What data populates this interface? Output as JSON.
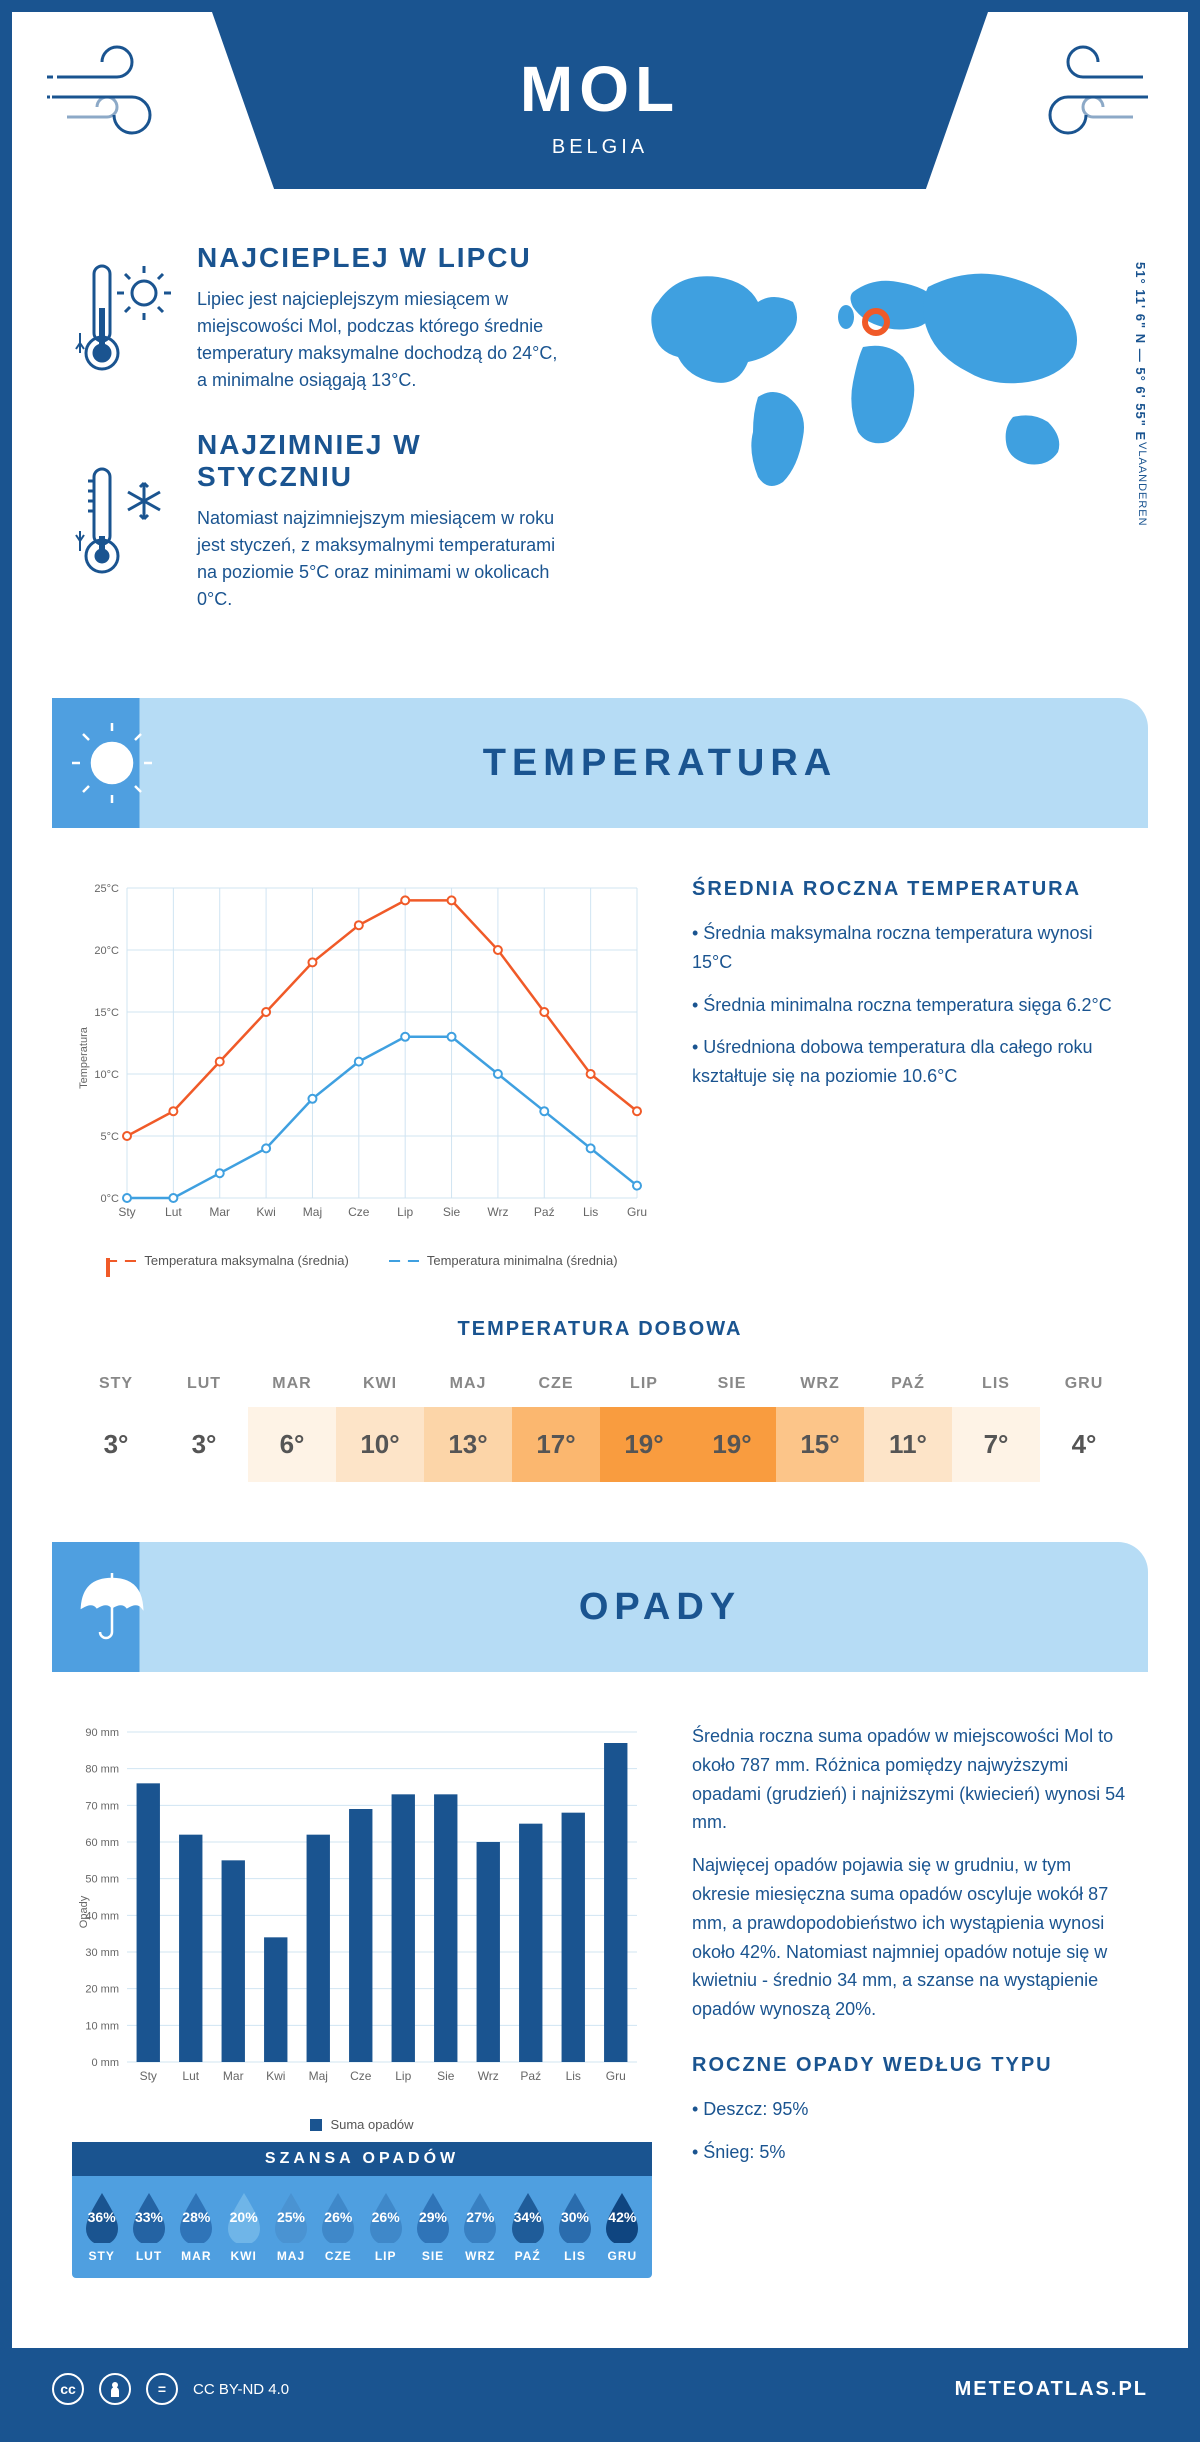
{
  "header": {
    "title": "MOL",
    "country": "BELGIA"
  },
  "coords": "51° 11' 6\" N — 5° 6' 55\" E",
  "region": "VLAANDEREN",
  "colors": {
    "primary": "#1a5490",
    "light_blue": "#b6dcf5",
    "mid_blue": "#4f9fe0",
    "max_line": "#f05a28",
    "min_line": "#3fa0e0",
    "grid": "#d0e4f2",
    "bar": "#1a5490"
  },
  "warm": {
    "title": "NAJCIEPLEJ W LIPCU",
    "text": "Lipiec jest najcieplejszym miesiącem w miejscowości Mol, podczas którego średnie temperatury maksymalne dochodzą do 24°C, a minimalne osiągają 13°C."
  },
  "cold": {
    "title": "NAJZIMNIEJ W STYCZNIU",
    "text": "Natomiast najzimniejszym miesiącem w roku jest styczeń, z maksymalnymi temperaturami na poziomie 5°C oraz minimami w okolicach 0°C."
  },
  "temp_section": {
    "title": "TEMPERATURA"
  },
  "temp_chart": {
    "type": "line",
    "months": [
      "Sty",
      "Lut",
      "Mar",
      "Kwi",
      "Maj",
      "Cze",
      "Lip",
      "Sie",
      "Wrz",
      "Paź",
      "Lis",
      "Gru"
    ],
    "max_values": [
      5,
      7,
      11,
      15,
      19,
      22,
      24,
      24,
      20,
      15,
      10,
      7
    ],
    "min_values": [
      0,
      0,
      2,
      4,
      8,
      11,
      13,
      13,
      10,
      7,
      4,
      1
    ],
    "ylim": [
      0,
      25
    ],
    "ytick_step": 5,
    "ylabel": "Temperatura",
    "legend_max": "Temperatura maksymalna (średnia)",
    "legend_min": "Temperatura minimalna (średnia)"
  },
  "temp_info": {
    "title": "ŚREDNIA ROCZNA TEMPERATURA",
    "b1": "• Średnia maksymalna roczna temperatura wynosi 15°C",
    "b2": "• Średnia minimalna roczna temperatura sięga 6.2°C",
    "b3": "• Uśredniona dobowa temperatura dla całego roku kształtuje się na poziomie 10.6°C"
  },
  "daily": {
    "title": "TEMPERATURA DOBOWA",
    "months": [
      "STY",
      "LUT",
      "MAR",
      "KWI",
      "MAJ",
      "CZE",
      "LIP",
      "SIE",
      "WRZ",
      "PAŹ",
      "LIS",
      "GRU"
    ],
    "values": [
      "3°",
      "3°",
      "6°",
      "10°",
      "13°",
      "17°",
      "19°",
      "19°",
      "15°",
      "11°",
      "7°",
      "4°"
    ],
    "bg_colors": [
      "#ffffff",
      "#ffffff",
      "#fef3e6",
      "#fde4c8",
      "#fcd5a8",
      "#fbb76f",
      "#f99c3f",
      "#f99c3f",
      "#fcc589",
      "#fde4c8",
      "#fef3e6",
      "#ffffff"
    ]
  },
  "precip_section": {
    "title": "OPADY"
  },
  "precip_chart": {
    "type": "bar",
    "months": [
      "Sty",
      "Lut",
      "Mar",
      "Kwi",
      "Maj",
      "Cze",
      "Lip",
      "Sie",
      "Wrz",
      "Paź",
      "Lis",
      "Gru"
    ],
    "values": [
      76,
      62,
      55,
      34,
      62,
      69,
      73,
      73,
      60,
      65,
      68,
      87
    ],
    "ylim": [
      0,
      90
    ],
    "ytick_step": 10,
    "ylabel": "Opady",
    "legend": "Suma opadów"
  },
  "precip_info": {
    "p1": "Średnia roczna suma opadów w miejscowości Mol to około 787 mm. Różnica pomiędzy najwyższymi opadami (grudzień) i najniższymi (kwiecień) wynosi 54 mm.",
    "p2": "Najwięcej opadów pojawia się w grudniu, w tym okresie miesięczna suma opadów oscyluje wokół 87 mm, a prawdopodobieństwo ich wystąpienia wynosi około 42%. Natomiast najmniej opadów notuje się w kwietniu - średnio 34 mm, a szanse na wystąpienie opadów wynoszą 20%.",
    "type_title": "ROCZNE OPADY WEDŁUG TYPU",
    "type1": "• Deszcz: 95%",
    "type2": "• Śnieg: 5%"
  },
  "chance": {
    "title": "SZANSA OPADÓW",
    "months": [
      "STY",
      "LUT",
      "MAR",
      "KWI",
      "MAJ",
      "CZE",
      "LIP",
      "SIE",
      "WRZ",
      "PAŹ",
      "LIS",
      "GRU"
    ],
    "values": [
      "36%",
      "33%",
      "28%",
      "20%",
      "25%",
      "26%",
      "26%",
      "29%",
      "27%",
      "34%",
      "30%",
      "42%"
    ],
    "colors": [
      "#1a5490",
      "#2463a3",
      "#2f74b8",
      "#6fb5e8",
      "#4a93d2",
      "#3f88c9",
      "#3f88c9",
      "#2f74b8",
      "#3880c2",
      "#1f5c99",
      "#2a6cad",
      "#0f4580"
    ]
  },
  "footer": {
    "license": "CC BY-ND 4.0",
    "site": "METEOATLAS.PL"
  }
}
